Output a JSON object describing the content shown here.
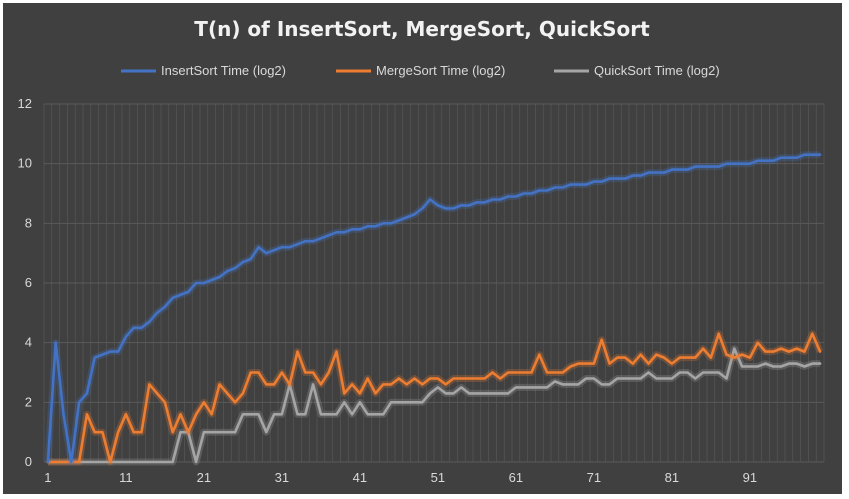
{
  "chart_data": {
    "type": "line",
    "title": "T(n) of InsertSort, MergeSort, QuickSort",
    "xlabel": "",
    "ylabel": "",
    "ylim": [
      0,
      12
    ],
    "yticks": [
      0,
      2,
      4,
      6,
      8,
      10,
      12
    ],
    "xticks": [
      1,
      11,
      21,
      31,
      41,
      51,
      61,
      71,
      81,
      91
    ],
    "x_start": 1,
    "grid": true,
    "legend_position": "top",
    "colors": {
      "background": "#404040",
      "grid": "#5a5a5a",
      "text": "#d9d9d9"
    },
    "series": [
      {
        "name": "InsertSort Time (log2)",
        "color": "#4472C4",
        "values": [
          0,
          4,
          1.6,
          0,
          2,
          2.3,
          3.5,
          3.6,
          3.7,
          3.7,
          4.2,
          4.5,
          4.5,
          4.7,
          5,
          5.2,
          5.5,
          5.6,
          5.7,
          6,
          6,
          6.1,
          6.2,
          6.4,
          6.5,
          6.7,
          6.8,
          7.2,
          7,
          7.1,
          7.2,
          7.2,
          7.3,
          7.4,
          7.4,
          7.5,
          7.6,
          7.7,
          7.7,
          7.8,
          7.8,
          7.9,
          7.9,
          8,
          8,
          8.1,
          8.2,
          8.3,
          8.5,
          8.8,
          8.6,
          8.5,
          8.5,
          8.6,
          8.6,
          8.7,
          8.7,
          8.8,
          8.8,
          8.9,
          8.9,
          9,
          9,
          9.1,
          9.1,
          9.2,
          9.2,
          9.3,
          9.3,
          9.3,
          9.4,
          9.4,
          9.5,
          9.5,
          9.5,
          9.6,
          9.6,
          9.7,
          9.7,
          9.7,
          9.8,
          9.8,
          9.8,
          9.9,
          9.9,
          9.9,
          9.9,
          10,
          10,
          10,
          10,
          10.1,
          10.1,
          10.1,
          10.2,
          10.2,
          10.2,
          10.3,
          10.3,
          10.3
        ]
      },
      {
        "name": "MergeSort Time  (log2)",
        "color": "#ED7D31",
        "values": [
          0,
          0,
          0,
          0,
          0,
          1.6,
          1,
          1,
          0,
          1,
          1.6,
          1,
          1,
          2.6,
          2.3,
          2,
          1,
          1.6,
          1,
          1.6,
          2,
          1.6,
          2.6,
          2.3,
          2,
          2.3,
          3,
          3,
          2.6,
          2.6,
          3,
          2.6,
          3.7,
          3,
          3,
          2.6,
          3,
          3.7,
          2.3,
          2.6,
          2.3,
          2.8,
          2.3,
          2.6,
          2.6,
          2.8,
          2.6,
          2.8,
          2.6,
          2.8,
          2.8,
          2.6,
          2.8,
          2.8,
          2.8,
          2.8,
          2.8,
          3,
          2.8,
          3,
          3,
          3,
          3,
          3.6,
          3,
          3,
          3,
          3.2,
          3.3,
          3.3,
          3.3,
          4.1,
          3.3,
          3.5,
          3.5,
          3.3,
          3.6,
          3.3,
          3.6,
          3.5,
          3.3,
          3.5,
          3.5,
          3.5,
          3.8,
          3.5,
          4.3,
          3.6,
          3.5,
          3.6,
          3.5,
          4,
          3.7,
          3.7,
          3.8,
          3.7,
          3.8,
          3.7,
          4.3,
          3.7
        ]
      },
      {
        "name": "QuickSort Time  (log2)",
        "color": "#A5A5A5",
        "values": [
          0,
          0,
          0,
          0,
          0,
          0,
          0,
          0,
          0,
          0,
          0,
          0,
          0,
          0,
          0,
          0,
          0,
          1,
          1,
          0,
          1,
          1,
          1,
          1,
          1,
          1.6,
          1.6,
          1.6,
          1,
          1.6,
          1.6,
          2.6,
          1.6,
          1.6,
          2.6,
          1.6,
          1.6,
          1.6,
          2,
          1.6,
          2,
          1.6,
          1.6,
          1.6,
          2,
          2,
          2,
          2,
          2,
          2.3,
          2.5,
          2.3,
          2.3,
          2.5,
          2.3,
          2.3,
          2.3,
          2.3,
          2.3,
          2.3,
          2.5,
          2.5,
          2.5,
          2.5,
          2.5,
          2.7,
          2.6,
          2.6,
          2.6,
          2.8,
          2.8,
          2.6,
          2.6,
          2.8,
          2.8,
          2.8,
          2.8,
          3,
          2.8,
          2.8,
          2.8,
          3,
          3,
          2.8,
          3,
          3,
          3,
          2.8,
          3.8,
          3.2,
          3.2,
          3.2,
          3.3,
          3.2,
          3.2,
          3.3,
          3.3,
          3.2,
          3.3,
          3.3
        ]
      }
    ]
  }
}
